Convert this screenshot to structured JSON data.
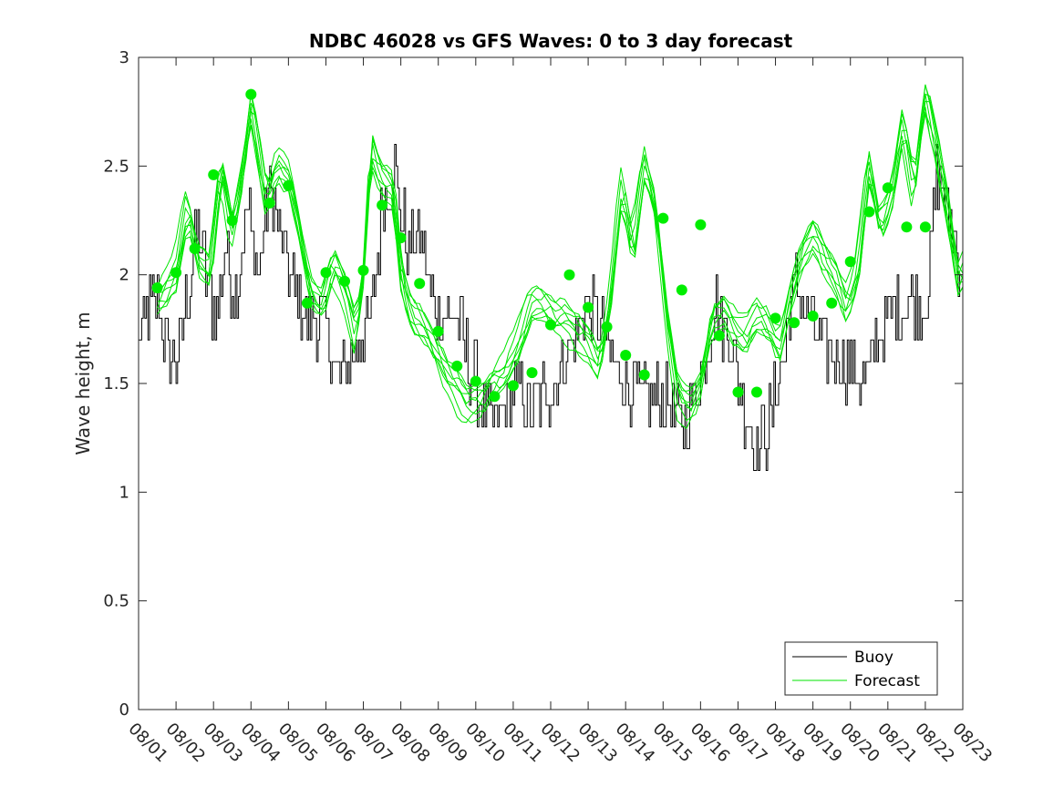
{
  "chart_data": {
    "type": "line",
    "title": "NDBC 46028 vs GFS Waves: 0 to 3 day forecast",
    "xlabel": "",
    "ylabel": "Wave height, m",
    "xlim": [
      0,
      22
    ],
    "ylim": [
      0,
      3
    ],
    "yticks": [
      0,
      0.5,
      1,
      1.5,
      2,
      2.5,
      3
    ],
    "ytick_labels": [
      "0",
      "0.5",
      "1",
      "1.5",
      "2",
      "2.5",
      "3"
    ],
    "xtick_labels": [
      "08/01",
      "08/02",
      "08/03",
      "08/04",
      "08/05",
      "08/06",
      "08/07",
      "08/08",
      "08/09",
      "08/10",
      "08/11",
      "08/12",
      "08/13",
      "08/14",
      "08/15",
      "08/16",
      "08/17",
      "08/18",
      "08/19",
      "08/20",
      "08/21",
      "08/22",
      "08/23"
    ],
    "legend": {
      "position": "bottom-right",
      "entries": [
        {
          "label": "Buoy",
          "color": "#000000"
        },
        {
          "label": "Forecast",
          "color": "#00e600"
        }
      ]
    },
    "colors": {
      "buoy": "#000000",
      "forecast": "#00e600",
      "marker": "#00ee00"
    },
    "buoy_anchors": {
      "x": [
        0,
        0.2,
        0.5,
        0.8,
        1.0,
        1.3,
        1.6,
        1.9,
        2.1,
        2.3,
        2.6,
        2.9,
        3.2,
        3.5,
        3.9,
        4.2,
        4.5,
        4.8,
        5.1,
        5.3,
        5.6,
        5.9,
        6.2,
        6.5,
        6.8,
        7.0,
        7.2,
        7.5,
        7.8,
        8.1,
        8.5,
        8.8,
        9.2,
        9.5,
        9.8,
        10.2,
        10.5,
        10.8,
        11.1,
        11.3,
        11.6,
        11.9,
        12.2,
        12.5,
        12.8,
        13.1,
        13.5,
        13.8,
        14.2,
        14.5,
        14.8,
        15.1,
        15.4,
        15.8,
        16.0,
        16.3,
        16.5,
        16.8,
        17.0,
        17.2,
        17.5,
        17.8,
        18.1,
        18.5,
        18.8,
        19.1,
        19.4,
        19.7,
        20.0,
        20.3,
        20.6,
        20.9,
        21.1,
        21.3,
        21.6,
        22.0
      ],
      "y": [
        1.7,
        1.8,
        1.9,
        1.6,
        1.6,
        1.9,
        2.2,
        1.9,
        1.8,
        2.1,
        1.9,
        2.3,
        2.0,
        2.4,
        2.1,
        1.9,
        1.8,
        1.8,
        1.7,
        1.5,
        1.6,
        1.7,
        1.8,
        2.3,
        2.5,
        2.3,
        2.1,
        2.2,
        1.9,
        1.8,
        1.8,
        1.6,
        1.4,
        1.3,
        1.4,
        1.5,
        1.35,
        1.45,
        1.5,
        1.6,
        1.7,
        1.85,
        1.85,
        1.65,
        1.55,
        1.5,
        1.4,
        1.45,
        1.4,
        1.3,
        1.4,
        1.6,
        1.85,
        1.7,
        1.5,
        1.3,
        1.2,
        1.3,
        1.45,
        1.6,
        1.95,
        1.85,
        1.7,
        1.65,
        1.6,
        1.55,
        1.5,
        1.7,
        1.8,
        1.85,
        1.9,
        1.85,
        1.95,
        2.5,
        2.3,
        2.0
      ]
    },
    "forecast_anchors": {
      "x": [
        0.5,
        0.8,
        1.0,
        1.3,
        1.6,
        1.9,
        2.2,
        2.5,
        2.8,
        3.0,
        3.2,
        3.4,
        3.7,
        4.0,
        4.3,
        4.6,
        4.9,
        5.2,
        5.5,
        5.8,
        6.0,
        6.2,
        6.5,
        6.8,
        7.0,
        7.3,
        7.6,
        7.9,
        8.2,
        8.5,
        8.8,
        9.2,
        9.5,
        9.8,
        10.2,
        10.5,
        10.8,
        11.1,
        11.4,
        11.7,
        12.0,
        12.3,
        12.6,
        12.9,
        13.2,
        13.5,
        13.8,
        14.1,
        14.4,
        14.7,
        15.0,
        15.3,
        15.6,
        15.9,
        16.2,
        16.5,
        16.8,
        17.1,
        17.4,
        17.7,
        18.0,
        18.3,
        18.6,
        18.9,
        19.2,
        19.5,
        19.8,
        20.1,
        20.4,
        20.7,
        21.0,
        21.3,
        21.6,
        21.9,
        22.0
      ],
      "y": [
        1.9,
        1.95,
        2.0,
        2.3,
        2.05,
        2.0,
        2.5,
        2.2,
        2.5,
        2.8,
        2.6,
        2.35,
        2.5,
        2.45,
        2.2,
        1.9,
        1.85,
        2.05,
        1.95,
        1.75,
        2.0,
        2.6,
        2.45,
        2.4,
        2.0,
        1.8,
        1.75,
        1.65,
        1.55,
        1.48,
        1.42,
        1.45,
        1.52,
        1.55,
        1.7,
        1.85,
        1.85,
        1.8,
        1.8,
        1.75,
        1.7,
        1.6,
        1.9,
        2.4,
        2.1,
        2.5,
        2.3,
        1.8,
        1.45,
        1.4,
        1.5,
        1.8,
        1.85,
        1.75,
        1.7,
        1.8,
        1.75,
        1.65,
        1.9,
        2.1,
        2.2,
        2.1,
        2.0,
        1.85,
        2.0,
        2.5,
        2.2,
        2.35,
        2.7,
        2.4,
        2.85,
        2.6,
        2.3,
        1.95,
        2.0
      ]
    },
    "forecast_markers": {
      "x": [
        0.5,
        1.0,
        1.5,
        2.0,
        2.5,
        3.0,
        3.5,
        4.0,
        4.5,
        5.0,
        5.5,
        6.0,
        6.5,
        7.0,
        7.5,
        8.0,
        8.5,
        9.0,
        9.5,
        10.0,
        10.5,
        11.0,
        11.5,
        12.0,
        12.5,
        13.0,
        13.5,
        14.0,
        14.5,
        15.0,
        15.5,
        16.0,
        16.5,
        17.0,
        17.5,
        18.0,
        18.5,
        19.0,
        19.5,
        20.0,
        20.5,
        21.0
      ],
      "y": [
        1.94,
        2.01,
        2.12,
        2.46,
        2.25,
        2.83,
        2.33,
        2.41,
        1.87,
        2.01,
        1.97,
        2.02,
        2.32,
        2.17,
        1.96,
        1.74,
        1.58,
        1.51,
        1.44,
        1.49,
        1.55,
        1.77,
        2.0,
        1.85,
        1.76,
        1.63,
        1.54,
        2.26,
        1.93,
        2.23,
        1.72,
        1.46,
        1.46,
        1.8,
        1.78,
        1.81,
        1.87,
        2.06,
        2.29,
        2.4,
        2.22,
        2.22
      ]
    }
  }
}
